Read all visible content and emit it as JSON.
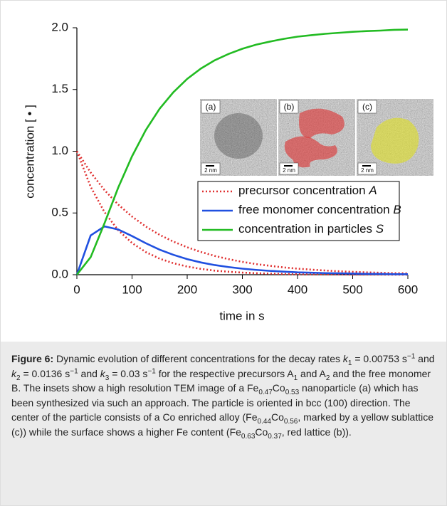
{
  "chart_data": {
    "type": "line",
    "x_label": "time in s",
    "y_label": "concentration [ • ]",
    "x": [
      0,
      25,
      50,
      75,
      100,
      125,
      150,
      175,
      200,
      225,
      250,
      275,
      300,
      325,
      350,
      375,
      400,
      425,
      450,
      475,
      500,
      525,
      550,
      575,
      600
    ],
    "xlim": [
      0,
      600
    ],
    "xticks": [
      0,
      100,
      200,
      300,
      400,
      500,
      600
    ],
    "ylim": [
      0,
      2
    ],
    "yticks": [
      {
        "value": 0,
        "label": "0.0"
      },
      {
        "value": 0.5,
        "label": "0.5"
      },
      {
        "value": 1,
        "label": "1.0"
      },
      {
        "value": 1.5,
        "label": "1.5"
      },
      {
        "value": 2,
        "label": "2.0"
      }
    ],
    "series": [
      {
        "name": "precursor concentration",
        "symbol": "A",
        "color": "#e03030",
        "dash": "dotted",
        "values": [
          1,
          0.828,
          0.686,
          0.568,
          0.471,
          0.39,
          0.323,
          0.268,
          0.222,
          0.184,
          0.152,
          0.126,
          0.104,
          0.086,
          0.072,
          0.059,
          0.049,
          0.041,
          0.034,
          0.028,
          0.023,
          0.019,
          0.016,
          0.013,
          0.011
        ]
      },
      {
        "color": "#e03030",
        "dash": "dotted",
        "values": [
          1,
          0.712,
          0.507,
          0.36,
          0.257,
          0.183,
          0.13,
          0.093,
          0.066,
          0.047,
          0.033,
          0.024,
          0.017,
          0.012,
          0.009,
          0.006,
          0.004,
          0.003,
          0.002,
          0.002,
          0.001,
          0.001,
          0.001,
          0,
          0
        ]
      },
      {
        "name": "free monomer concentration",
        "symbol": "B",
        "color": "#2050e0",
        "dash": "solid",
        "values": [
          0,
          0.318,
          0.391,
          0.366,
          0.313,
          0.255,
          0.203,
          0.161,
          0.126,
          0.099,
          0.078,
          0.062,
          0.049,
          0.039,
          0.031,
          0.025,
          0.019,
          0.016,
          0.013,
          0.011,
          0.009,
          0.007,
          0.006,
          0.004,
          0.004
        ]
      },
      {
        "name": "concentration in particles",
        "symbol": "S",
        "color": "#22bb22",
        "dash": "solid",
        "values": [
          0,
          0.142,
          0.416,
          0.706,
          0.959,
          1.172,
          1.344,
          1.478,
          1.586,
          1.67,
          1.737,
          1.788,
          1.83,
          1.863,
          1.888,
          1.91,
          1.928,
          1.94,
          1.951,
          1.959,
          1.967,
          1.973,
          1.977,
          1.983,
          1.985
        ]
      }
    ],
    "insets": [
      {
        "label": "(a)",
        "scale": "2 nm"
      },
      {
        "label": "(b)",
        "scale": "2 nm"
      },
      {
        "label": "(c)",
        "scale": "2 nm"
      }
    ]
  },
  "caption": [
    {
      "b": "Figure 6:"
    },
    {
      "t": " Dynamic evolution of different concentrations for the decay rates "
    },
    {
      "i": "k"
    },
    {
      "sub": "1"
    },
    {
      "t": " = 0.00753 s"
    },
    {
      "sup": "−1"
    },
    {
      "t": " and "
    },
    {
      "i": "k"
    },
    {
      "sub": "2"
    },
    {
      "t": " = 0.0136 s"
    },
    {
      "sup": "−1"
    },
    {
      "t": " and "
    },
    {
      "i": "k"
    },
    {
      "sub": "3"
    },
    {
      "t": " = 0.03 s"
    },
    {
      "sup": "−1"
    },
    {
      "t": " for the respective precursors A"
    },
    {
      "sub": "1"
    },
    {
      "t": " and A"
    },
    {
      "sub": "2"
    },
    {
      "t": " and the free monomer B. The insets show a high resolution TEM image of a Fe"
    },
    {
      "sub": "0.47"
    },
    {
      "t": "Co"
    },
    {
      "sub": "0.53"
    },
    {
      "t": " nanoparticle (a) which has been synthesized via such an approach. The particle is oriented in bcc (100) direction. The center of the particle consists of a Co enriched alloy (Fe"
    },
    {
      "sub": "0.44"
    },
    {
      "t": "Co"
    },
    {
      "sub": "0.56"
    },
    {
      "t": ", marked by a yellow sublattice (c)) while the surface shows a higher Fe content (Fe"
    },
    {
      "sub": "0.63"
    },
    {
      "t": "Co"
    },
    {
      "sub": "0.37"
    },
    {
      "t": ", red lattice (b))."
    }
  ]
}
